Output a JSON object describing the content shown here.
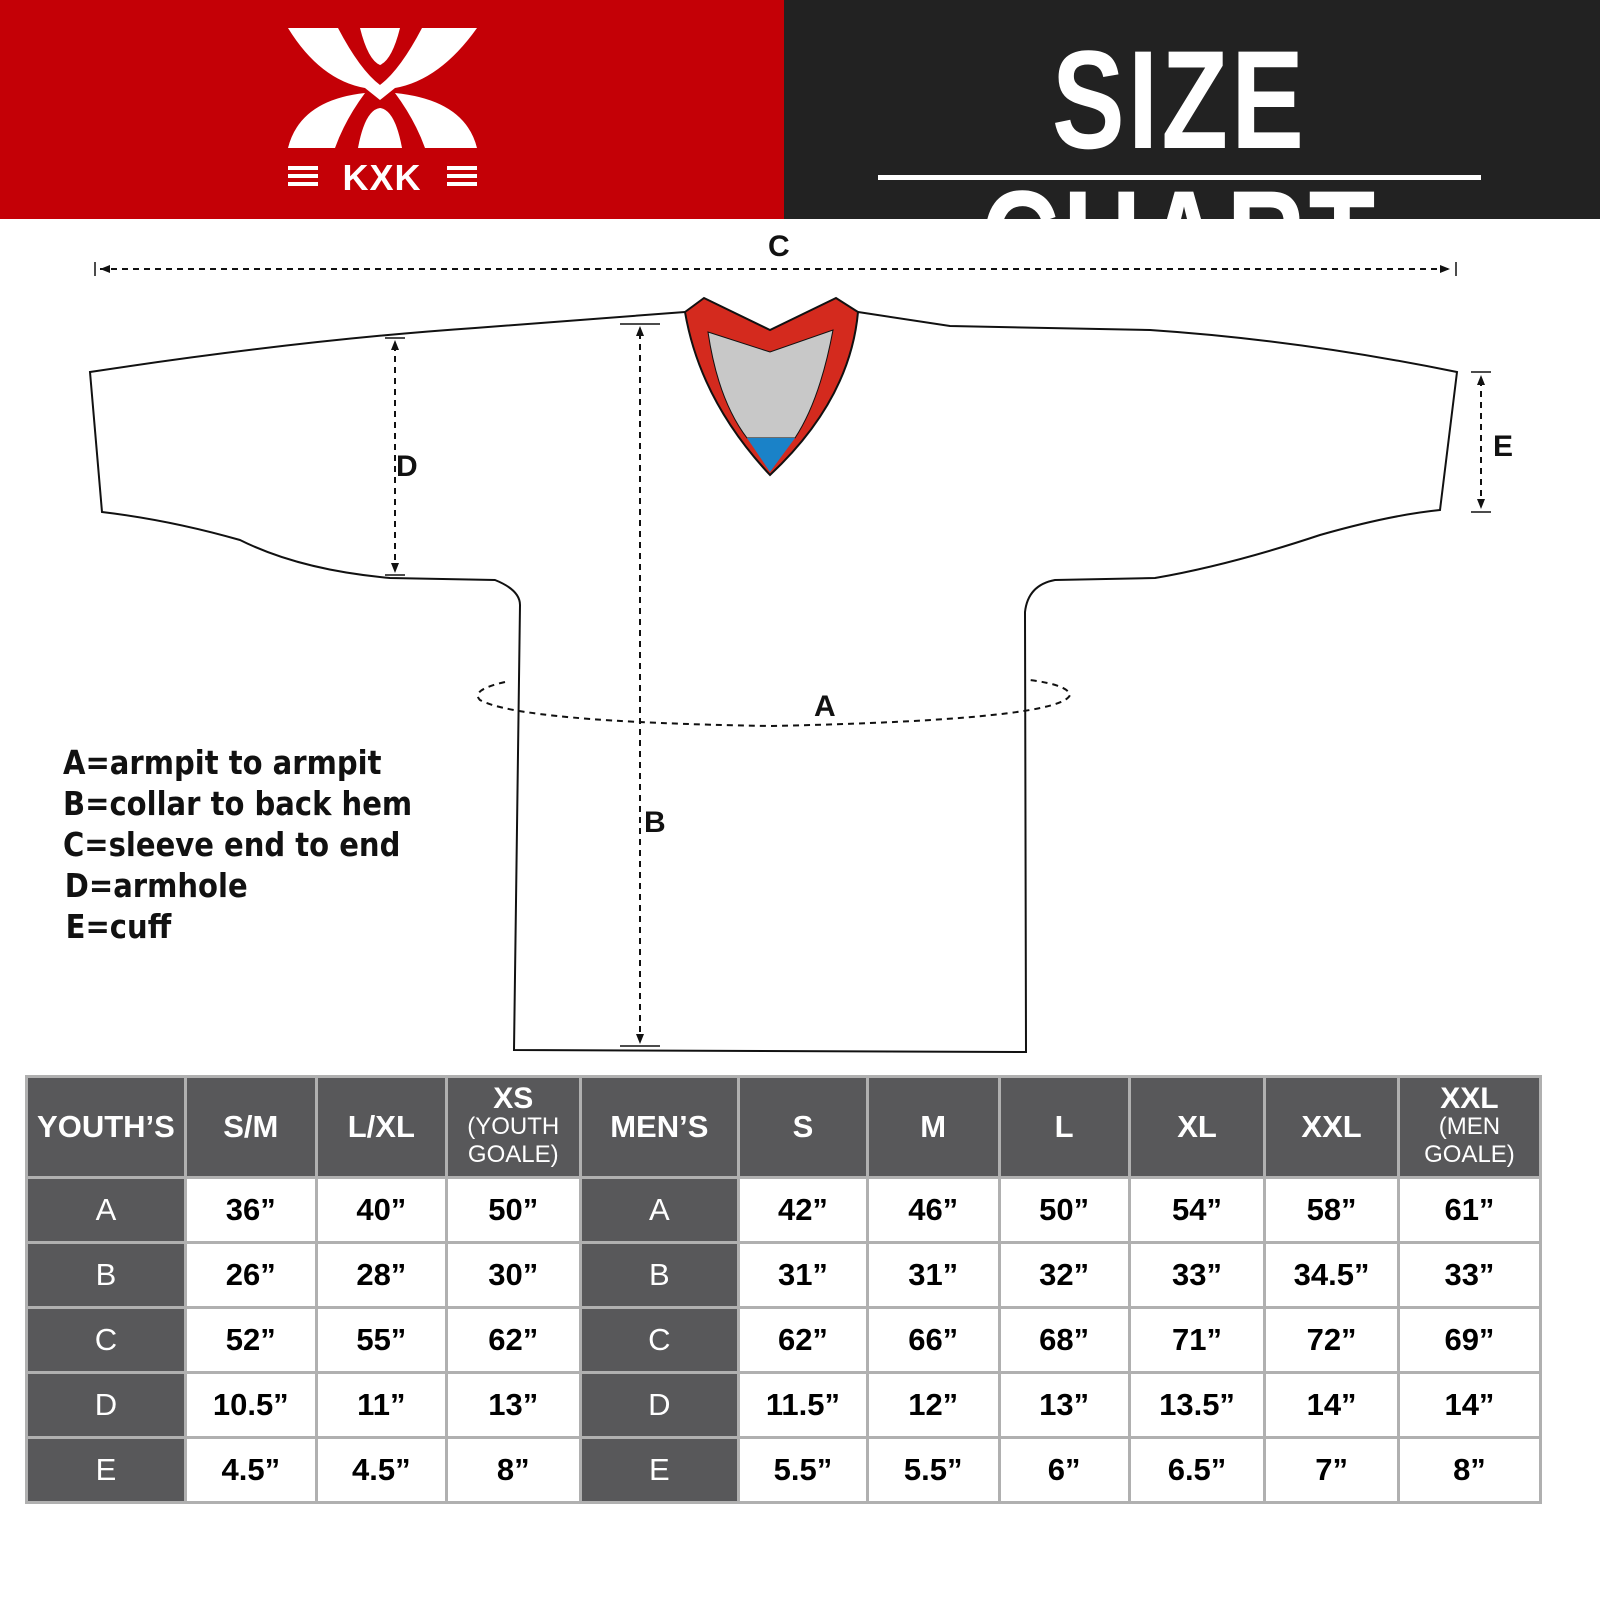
{
  "brand": {
    "name": "KXK",
    "colors": {
      "red": "#c40006",
      "dark": "#222222",
      "header_cell": "#58585a"
    }
  },
  "header": {
    "title": "SIZE CHART"
  },
  "diagram": {
    "labels": {
      "a": "A",
      "b": "B",
      "c": "C",
      "d": "D",
      "e": "E"
    }
  },
  "legend": [
    "A=armpit to armpit",
    "B=collar to back hem",
    "C=sleeve end to end",
    "D=armhole",
    "E=cuff"
  ],
  "table": {
    "youth_header": "YOUTH’S",
    "youth_sizes": [
      {
        "main": "S/M"
      },
      {
        "main": "L/XL"
      },
      {
        "main": "XS",
        "sub1": "(YOUTH",
        "sub2": "GOALE)"
      }
    ],
    "men_header": "MEN’S",
    "men_sizes": [
      {
        "main": "S"
      },
      {
        "main": "M"
      },
      {
        "main": "L"
      },
      {
        "main": "XL"
      },
      {
        "main": "XXL"
      },
      {
        "main": "XXL",
        "sub1": "(MEN",
        "sub2": "GOALE)"
      }
    ],
    "rows": [
      {
        "label": "A",
        "youth": [
          "36”",
          "40”",
          "50”"
        ],
        "men": [
          "42”",
          "46”",
          "50”",
          "54”",
          "58”",
          "61”"
        ]
      },
      {
        "label": "B",
        "youth": [
          "26”",
          "28”",
          "30”"
        ],
        "men": [
          "31”",
          "31”",
          "32”",
          "33”",
          "34.5”",
          "33”"
        ]
      },
      {
        "label": "C",
        "youth": [
          "52”",
          "55”",
          "62”"
        ],
        "men": [
          "62”",
          "66”",
          "68”",
          "71”",
          "72”",
          "69”"
        ]
      },
      {
        "label": "D",
        "youth": [
          "10.5”",
          "11”",
          "13”"
        ],
        "men": [
          "11.5”",
          "12”",
          "13”",
          "13.5”",
          "14”",
          "14”"
        ]
      },
      {
        "label": "E",
        "youth": [
          "4.5”",
          "4.5”",
          "8”"
        ],
        "men": [
          "5.5”",
          "5.5”",
          "6”",
          "6.5”",
          "7”",
          "8”"
        ]
      }
    ]
  }
}
